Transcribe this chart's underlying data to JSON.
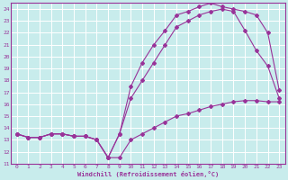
{
  "xlabel": "Windchill (Refroidissement éolien,°C)",
  "xlim": [
    -0.5,
    23.5
  ],
  "ylim": [
    11,
    24.5
  ],
  "yticks": [
    11,
    12,
    13,
    14,
    15,
    16,
    17,
    18,
    19,
    20,
    21,
    22,
    23,
    24
  ],
  "xticks": [
    0,
    1,
    2,
    3,
    4,
    5,
    6,
    7,
    8,
    9,
    10,
    11,
    12,
    13,
    14,
    15,
    16,
    17,
    18,
    19,
    20,
    21,
    22,
    23
  ],
  "bg_color": "#c8ecec",
  "grid_color": "#aadddd",
  "line_color": "#993399",
  "line1_x": [
    0,
    1,
    2,
    3,
    4,
    5,
    6,
    7,
    8,
    9,
    10,
    11,
    12,
    13,
    14,
    15,
    16,
    17,
    18,
    19,
    20,
    21,
    22,
    23
  ],
  "line1_y": [
    13.5,
    13.2,
    13.2,
    13.5,
    13.5,
    13.3,
    13.3,
    13.0,
    11.5,
    11.5,
    13.0,
    13.5,
    14.0,
    14.5,
    15.0,
    15.2,
    15.5,
    15.8,
    16.0,
    16.2,
    16.3,
    16.3,
    16.2,
    16.2
  ],
  "line2_x": [
    0,
    1,
    2,
    3,
    4,
    5,
    6,
    7,
    8,
    9,
    10,
    11,
    12,
    13,
    14,
    15,
    16,
    17,
    18,
    19,
    20,
    21,
    22,
    23
  ],
  "line2_y": [
    13.5,
    13.2,
    13.2,
    13.5,
    13.5,
    13.3,
    13.3,
    13.0,
    11.5,
    13.5,
    16.5,
    18.0,
    19.5,
    21.0,
    22.5,
    23.0,
    23.5,
    23.8,
    24.0,
    23.8,
    22.2,
    20.5,
    19.2,
    16.5
  ],
  "line3_x": [
    0,
    1,
    2,
    3,
    4,
    5,
    6,
    7,
    8,
    9,
    10,
    11,
    12,
    13,
    14,
    15,
    16,
    17,
    18,
    19,
    20,
    21,
    22,
    23
  ],
  "line3_y": [
    13.5,
    13.2,
    13.2,
    13.5,
    13.5,
    13.3,
    13.3,
    13.0,
    11.5,
    13.5,
    17.5,
    19.5,
    21.0,
    22.2,
    23.5,
    23.8,
    24.2,
    24.5,
    24.2,
    24.0,
    23.8,
    23.5,
    22.0,
    17.2
  ]
}
